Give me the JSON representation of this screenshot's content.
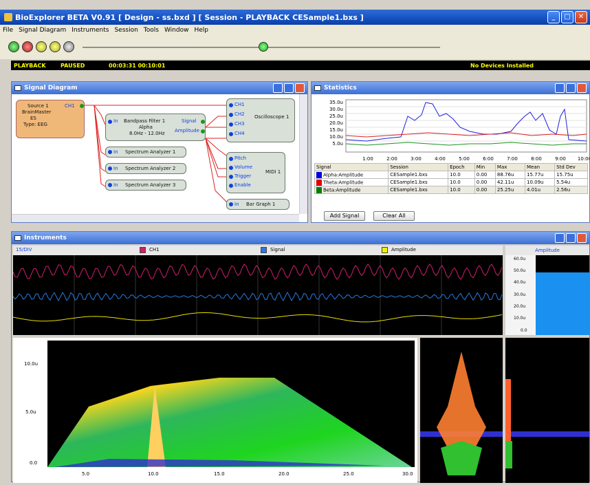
{
  "window": {
    "title": "BioExplorer BETA V0.91  [ Design - ss.bxd ] [ Session - PLAYBACK CESample1.bxs ]"
  },
  "menu": [
    "File",
    "Signal Diagram",
    "Instruments",
    "Session",
    "Tools",
    "Window",
    "Help"
  ],
  "toolbar": {
    "buttons": [
      "record-icon",
      "stop-icon",
      "play-icon",
      "pause-icon",
      "rewind-icon"
    ],
    "playback_fraction": 0.5
  },
  "status": {
    "mode": "PLAYBACK",
    "state": "PAUSED",
    "time": "00:03:31  00:10:01",
    "devices": "No Devices Installed"
  },
  "signal_diagram": {
    "title": "Signal Diagram",
    "source": {
      "line1": "Source 1",
      "line2": "BrainMaster",
      "line3": "ES",
      "line4": "Type: EEG",
      "port": "CH1"
    },
    "bandpass": {
      "line1": "Bandpass Filter 1",
      "line2": "Alpha",
      "line3": "8.0Hz - 12.0Hz",
      "in": "In",
      "out1": "Signal",
      "out2": "Amplitude"
    },
    "spectrums": [
      {
        "label": "Spectrum Analyzer 1",
        "in": "In"
      },
      {
        "label": "Spectrum Analyzer 2",
        "in": "In"
      },
      {
        "label": "Spectrum Analyzer 3",
        "in": "In"
      }
    ],
    "oscilloscope": {
      "label": "Oscilloscope 1",
      "ports": [
        "CH1",
        "CH2",
        "CH3",
        "CH4"
      ]
    },
    "midi": {
      "label": "MIDI 1",
      "ports": [
        "Pitch",
        "Volume",
        "Trigger",
        "Enable"
      ]
    },
    "bargraph": {
      "label": "Bar Graph 1",
      "in": "In"
    }
  },
  "statistics": {
    "title": "Statistics",
    "chart": {
      "y_ticks": [
        "35.0u",
        "30.0u",
        "25.0u",
        "20.0u",
        "15.0u",
        "10.0u",
        "5.0u"
      ],
      "x_ticks": [
        "1:00",
        "2:00",
        "3:00",
        "4:00",
        "5:00",
        "6:00",
        "7:00",
        "8:00",
        "9:00",
        "10:00"
      ]
    },
    "columns": [
      "Signal",
      "Session",
      "Epoch",
      "Min",
      "Max",
      "Mean",
      "Std Dev"
    ],
    "rows": [
      {
        "color": "#0000e0",
        "signal": "Alpha:Amplitude",
        "session": "CESample1.bxs",
        "epoch": "10.0",
        "min": "0.00",
        "max": "88.76u",
        "mean": "15.77u",
        "std": "15.75u"
      },
      {
        "color": "#e00000",
        "signal": "Theta:Amplitude",
        "session": "CESample1.bxs",
        "epoch": "10.0",
        "min": "0.00",
        "max": "42.11u",
        "mean": "10.09u",
        "std": "5.54u"
      },
      {
        "color": "#008000",
        "signal": "Beta:Amplitude",
        "session": "CESample1.bxs",
        "epoch": "10.0",
        "min": "0.00",
        "max": "25.25u",
        "mean": "4.01u",
        "std": "2.56u"
      }
    ],
    "add_label": "Add Signal",
    "clear_label": "Clear All"
  },
  "instruments": {
    "title": "Instruments",
    "scope_label": "15/DIV",
    "legend": [
      {
        "name": "CH1",
        "color": "#d0206a"
      },
      {
        "name": "Signal",
        "color": "#2a7ae0"
      },
      {
        "name": "Amplitude",
        "color": "#f0f000"
      }
    ],
    "bar_title": "Amplitude",
    "bar_ticks": [
      "60.0u",
      "50.0u",
      "40.0u",
      "30.0u",
      "20.0u",
      "10.0u",
      "0.0"
    ],
    "bar_value": 47,
    "spectrum_y_ticks": [
      "10.0u",
      "5.0u",
      "0.0"
    ],
    "spectrum_x_ticks": [
      "5.0",
      "10.0",
      "15.0",
      "20.0",
      "25.0",
      "30.0"
    ]
  }
}
